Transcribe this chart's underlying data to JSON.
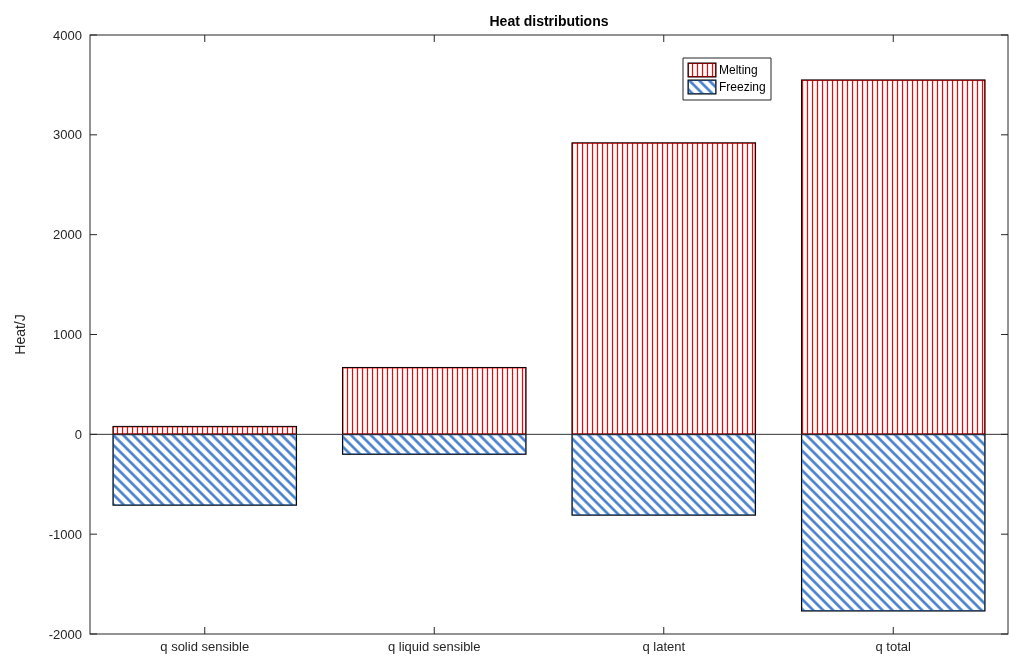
{
  "chart_data": {
    "type": "bar",
    "title": "Heat distributions",
    "ylabel": "Heat/J",
    "categories": [
      "q solid sensible",
      "q liquid sensible",
      "q latent",
      "q total"
    ],
    "series": [
      {
        "name": "Melting",
        "color": "#ff0000",
        "values": [
          80,
          670,
          2920,
          3550
        ]
      },
      {
        "name": "Freezing",
        "color": "#3d78c8",
        "values": [
          -710,
          -200,
          -810,
          -1770
        ]
      }
    ],
    "stacked": true,
    "ylim": [
      -2000,
      4000
    ],
    "yticks": [
      -2000,
      -1000,
      0,
      1000,
      2000,
      3000,
      4000
    ],
    "legend": "top right"
  }
}
